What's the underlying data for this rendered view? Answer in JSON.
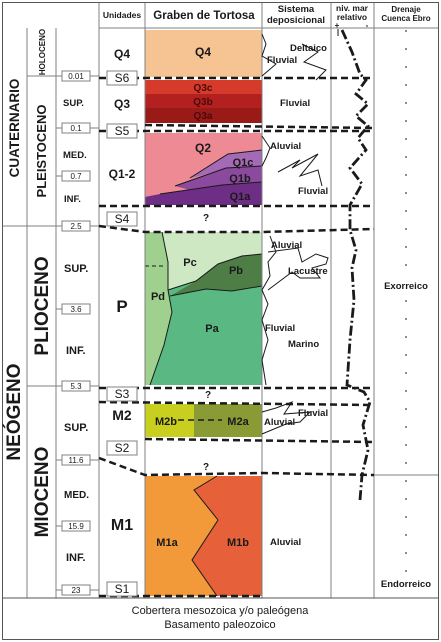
{
  "headers": {
    "unidades": "Unidades",
    "graben": "Graben de Tortosa",
    "sistema_1": "Sistema",
    "sistema_2": "deposicional",
    "nivel_1": "niv. mar",
    "nivel_2": "relativo",
    "nivel_plus": "+",
    "nivel_minus": "-",
    "drenaje_1": "Drenaje",
    "drenaje_2": "Cuenca Ebro"
  },
  "eras": {
    "cuaternario": "CUATERNARIO",
    "neogeno": "NEÓGENO"
  },
  "periods": {
    "holoceno": "HOLOCENO",
    "pleistoceno": "PLEISTOCENO",
    "plioceno": "PLIOCENO",
    "mioceno": "MIOCENO"
  },
  "subdivisions": [
    "SUP.",
    "MED.",
    "INF.",
    "SUP.",
    "INF.",
    "SUP.",
    "MED.",
    "INF."
  ],
  "ages": [
    "0.01",
    "0.1",
    "0.7",
    "2.5",
    "3.6",
    "5.3",
    "11.6",
    "15.9",
    "23"
  ],
  "units": [
    "Q4",
    "Q3",
    "Q1-2",
    "P",
    "M2",
    "M1"
  ],
  "surfaces": [
    "S6",
    "S5",
    "S4",
    "S3",
    "S2",
    "S1"
  ],
  "graben_labels": {
    "q4": "Q4",
    "q3c": "Q3c",
    "q3b": "Q3b",
    "q3a": "Q3a",
    "q2": "Q2",
    "q1c": "Q1c",
    "q1b": "Q1b",
    "q1a": "Q1a",
    "pc": "Pc",
    "pb": "Pb",
    "pd": "Pd",
    "pa": "Pa",
    "m2b": "M2b",
    "m2a": "M2a",
    "m1a": "M1a",
    "m1b": "M1b",
    "unknown": "?"
  },
  "systems": {
    "fluvial": "Fluvial",
    "deltaico": "Deltaico",
    "aluvial": "Aluvial",
    "lacustre": "Lacustre",
    "marino": "Marino"
  },
  "drainage": {
    "exorreico": "Exorreico",
    "endorreico": "Endorreico"
  },
  "footer": {
    "line1": "Cobertera mesozoica y/o paleógena",
    "line2": "Basamento paleozoico"
  },
  "colors": {
    "q4": "#f6c392",
    "q3c": "#d63a2a",
    "q3b": "#b22020",
    "q3a": "#9a1a18",
    "q2": "#ee8a94",
    "q1c": "#a56ab5",
    "q1b": "#8b4a9d",
    "q1a": "#6f2e85",
    "pa": "#5ab883",
    "pc": "#cde8c2",
    "pb": "#4e7e45",
    "pd": "#9fd08e",
    "m2b": "#c8cf1e",
    "m2a": "#8a9a34",
    "m1a": "#f29a3a",
    "m1b": "#e6603a",
    "line": "#1a1a1a",
    "grid": "#808080"
  }
}
